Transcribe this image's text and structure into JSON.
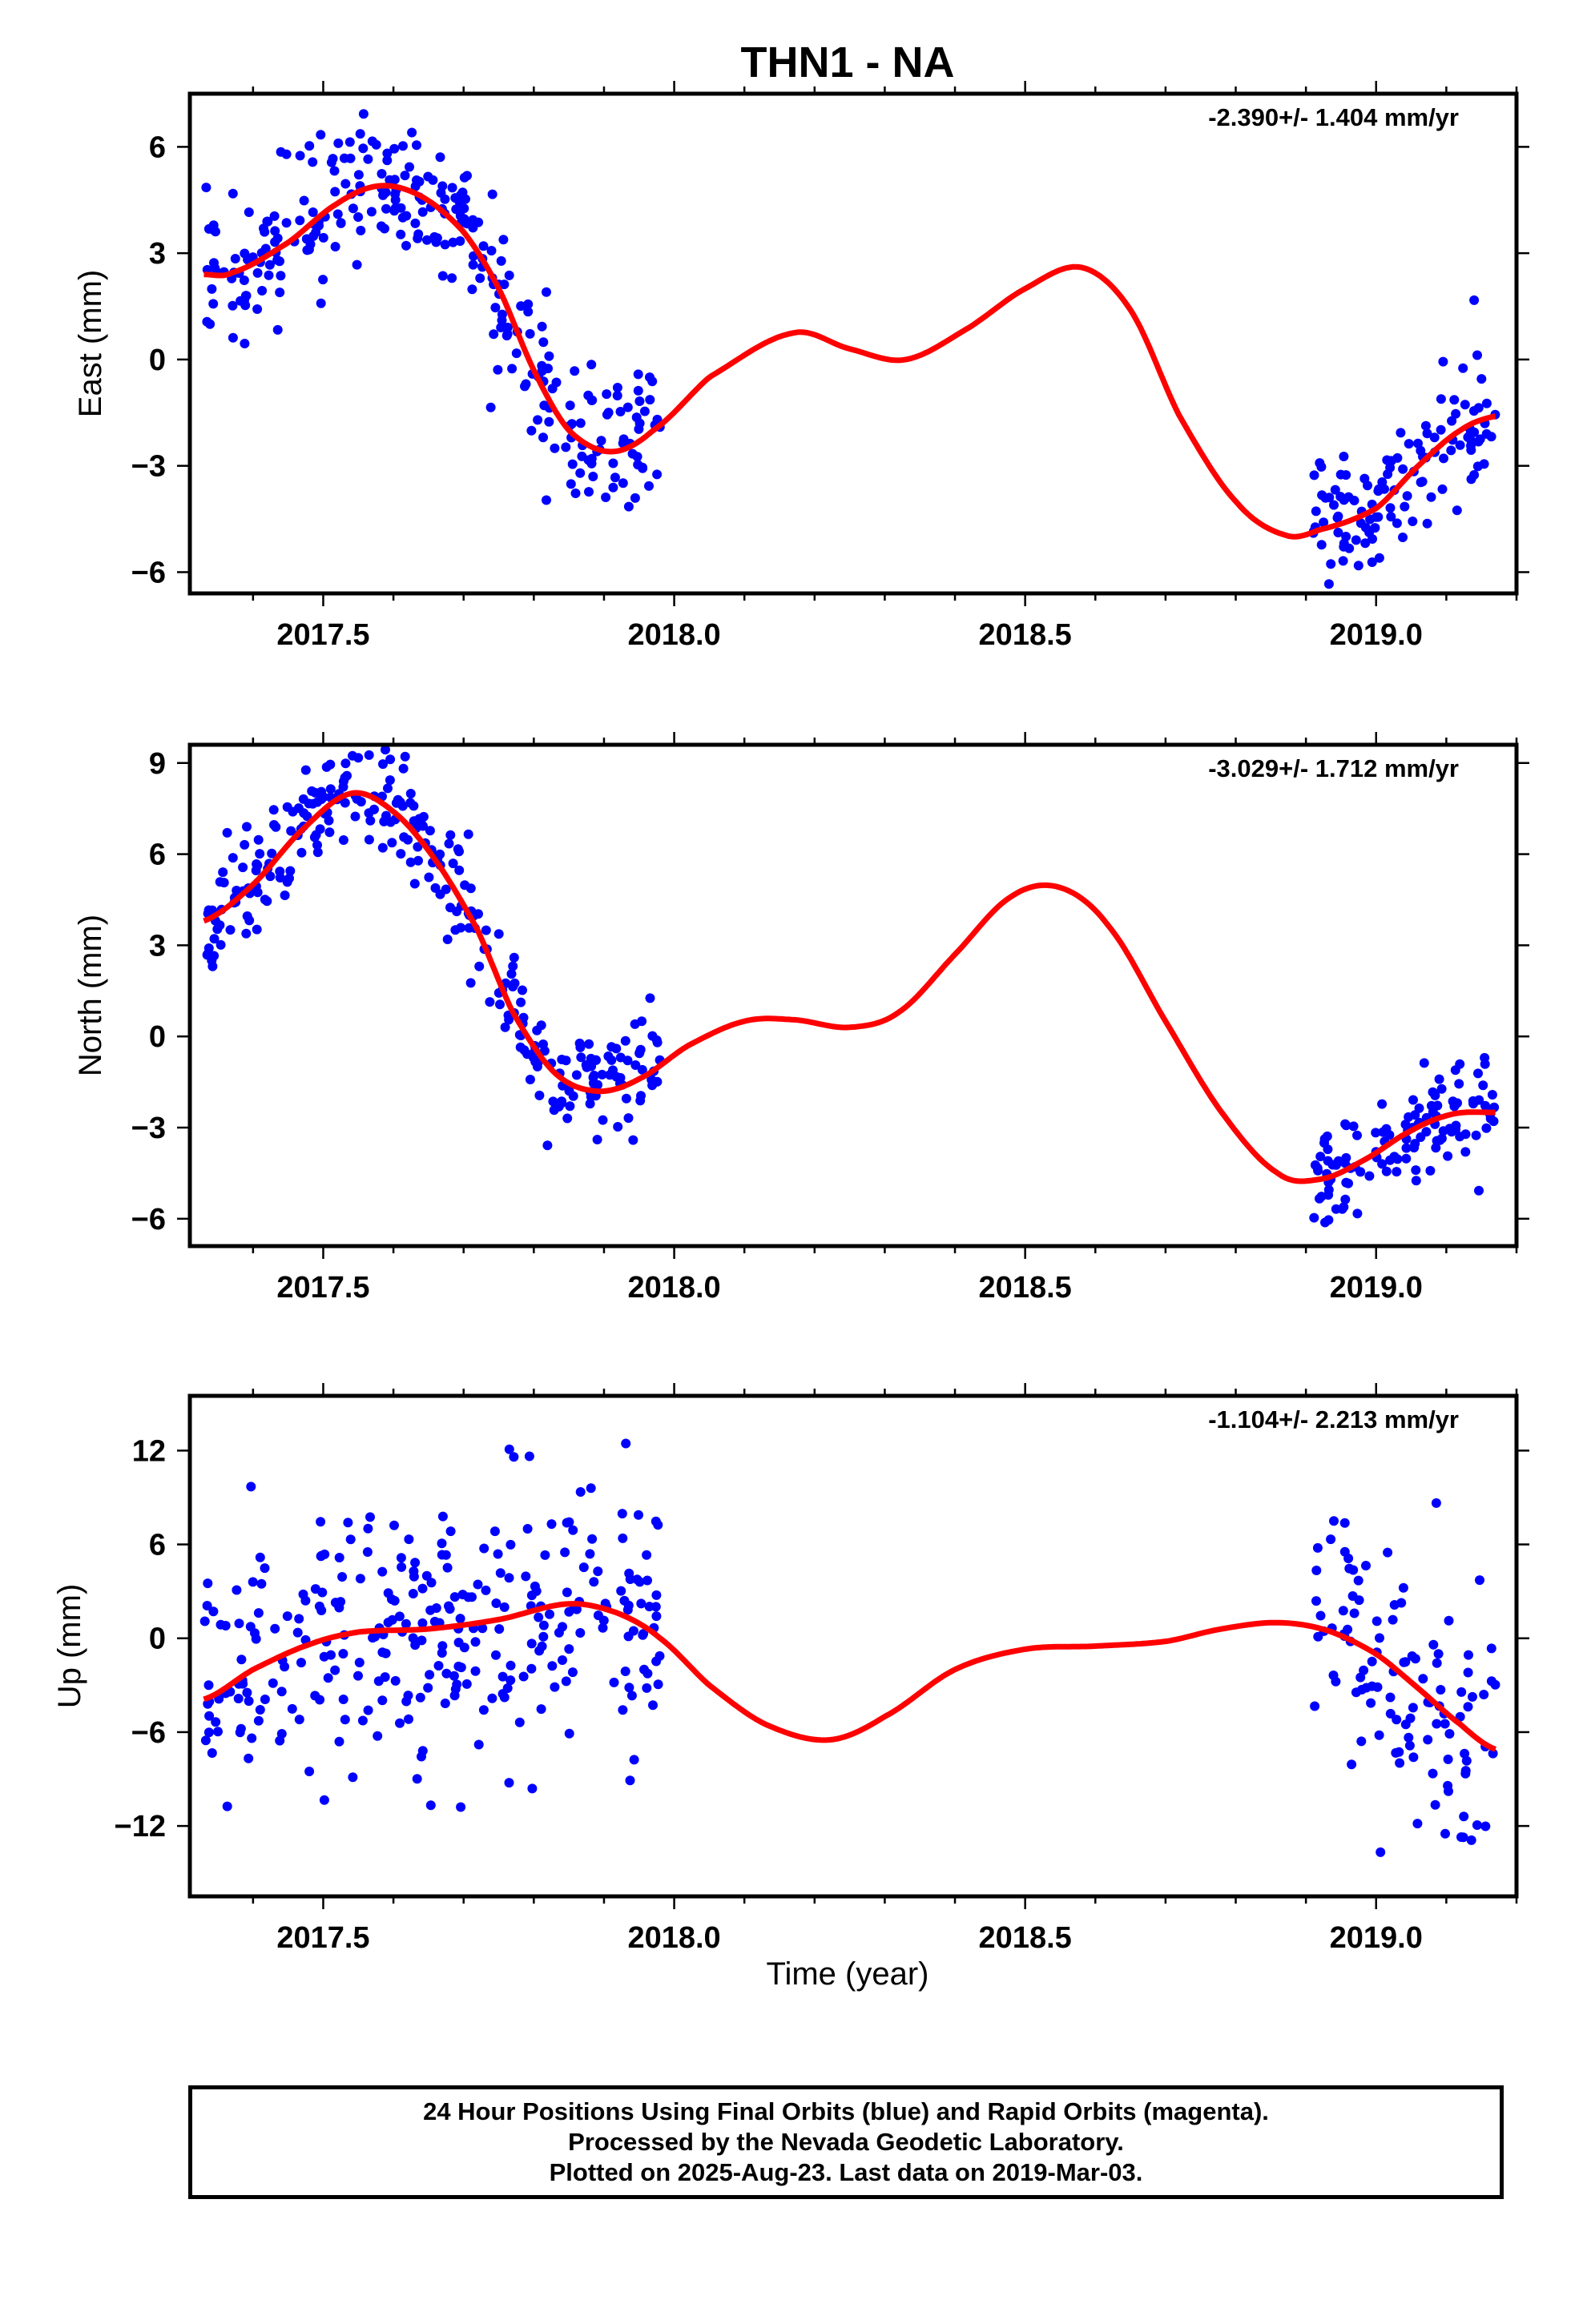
{
  "figure": {
    "title": "THN1 - NA",
    "xlabel": "Time (year)"
  },
  "caption": {
    "lines": [
      "24 Hour Positions Using Final Orbits (blue) and Rapid Orbits (magenta).",
      "Processed by the Nevada Geodetic Laboratory.",
      "Plotted on 2025-Aug-23. Last data on 2019-Mar-03."
    ]
  },
  "colors": {
    "points": "#0000ff",
    "fit": "#ff0000",
    "axes": "#000000"
  },
  "chart_data": [
    {
      "type": "scatter",
      "ylabel": "East (mm)",
      "rate_label": "-2.390+/- 1.404 mm/yr",
      "xlim": [
        2017.31,
        2019.2
      ],
      "ylim": [
        -6.6,
        7.5
      ],
      "xticks": [
        2017.5,
        2018.0,
        2018.5,
        2019.0
      ],
      "xtick_labels": [
        "2017.5",
        "2018.0",
        "2018.5",
        "2019.0"
      ],
      "yticks": [
        -6,
        -3,
        0,
        3,
        6
      ],
      "ytick_labels": [
        "−6",
        "−3",
        "0",
        "3",
        "6"
      ],
      "grid": false,
      "fit_knots": [
        [
          2017.33,
          2.4
        ],
        [
          2017.37,
          2.45
        ],
        [
          2017.45,
          3.3
        ],
        [
          2017.52,
          4.4
        ],
        [
          2017.58,
          4.9
        ],
        [
          2017.64,
          4.6
        ],
        [
          2017.7,
          3.6
        ],
        [
          2017.75,
          2.0
        ],
        [
          2017.8,
          -0.3
        ],
        [
          2017.85,
          -2.0
        ],
        [
          2017.91,
          -2.6
        ],
        [
          2017.97,
          -2.0
        ],
        [
          2018.05,
          -0.5
        ],
        [
          2018.17,
          0.75
        ],
        [
          2018.25,
          0.3
        ],
        [
          2018.33,
          0.0
        ],
        [
          2018.42,
          0.9
        ],
        [
          2018.5,
          2.0
        ],
        [
          2018.58,
          2.6
        ],
        [
          2018.65,
          1.4
        ],
        [
          2018.72,
          -1.6
        ],
        [
          2018.8,
          -4.0
        ],
        [
          2018.87,
          -4.95
        ],
        [
          2018.92,
          -4.8
        ],
        [
          2019.0,
          -4.2
        ],
        [
          2019.06,
          -3.0
        ],
        [
          2019.12,
          -2.0
        ],
        [
          2019.17,
          -1.6
        ]
      ],
      "points_seed": 11,
      "point_noise": 1.0,
      "point_segments": [
        [
          2017.33,
          2017.98,
          300
        ],
        [
          2018.91,
          2019.17,
          120
        ]
      ]
    },
    {
      "type": "scatter",
      "ylabel": "North (mm)",
      "rate_label": "-3.029+/- 1.712 mm/yr",
      "xlim": [
        2017.31,
        2019.2
      ],
      "ylim": [
        -6.9,
        9.6
      ],
      "xticks": [
        2017.5,
        2018.0,
        2018.5,
        2019.0
      ],
      "xtick_labels": [
        "2017.5",
        "2018.0",
        "2018.5",
        "2019.0"
      ],
      "yticks": [
        -6,
        -3,
        0,
        3,
        6,
        9
      ],
      "ytick_labels": [
        "−6",
        "−3",
        "0",
        "3",
        "6",
        "9"
      ],
      "grid": false,
      "fit_knots": [
        [
          2017.33,
          3.8
        ],
        [
          2017.4,
          5.0
        ],
        [
          2017.47,
          6.8
        ],
        [
          2017.54,
          8.0
        ],
        [
          2017.6,
          7.4
        ],
        [
          2017.66,
          5.8
        ],
        [
          2017.72,
          3.5
        ],
        [
          2017.77,
          0.8
        ],
        [
          2017.83,
          -1.2
        ],
        [
          2017.89,
          -1.8
        ],
        [
          2017.95,
          -1.4
        ],
        [
          2018.02,
          -0.3
        ],
        [
          2018.1,
          0.5
        ],
        [
          2018.17,
          0.55
        ],
        [
          2018.25,
          0.3
        ],
        [
          2018.32,
          0.8
        ],
        [
          2018.4,
          2.7
        ],
        [
          2018.48,
          4.6
        ],
        [
          2018.55,
          4.9
        ],
        [
          2018.62,
          3.6
        ],
        [
          2018.7,
          0.5
        ],
        [
          2018.78,
          -2.5
        ],
        [
          2018.86,
          -4.5
        ],
        [
          2018.92,
          -4.7
        ],
        [
          2018.98,
          -4.1
        ],
        [
          2019.05,
          -3.1
        ],
        [
          2019.11,
          -2.55
        ],
        [
          2019.17,
          -2.5
        ]
      ],
      "points_seed": 23,
      "point_noise": 0.9,
      "point_segments": [
        [
          2017.33,
          2017.98,
          300
        ],
        [
          2018.91,
          2019.17,
          120
        ]
      ]
    },
    {
      "type": "scatter",
      "ylabel": "Up (mm)",
      "rate_label": "-1.104+/- 2.213 mm/yr",
      "xlim": [
        2017.31,
        2019.2
      ],
      "ylim": [
        -16.5,
        15.5
      ],
      "xticks": [
        2017.5,
        2018.0,
        2018.5,
        2019.0
      ],
      "xtick_labels": [
        "2017.5",
        "2018.0",
        "2018.5",
        "2019.0"
      ],
      "yticks": [
        -12,
        -6,
        0,
        6,
        12
      ],
      "ytick_labels": [
        "−12",
        "−6",
        "0",
        "6",
        "12"
      ],
      "grid": false,
      "fit_knots": [
        [
          2017.33,
          -3.9
        ],
        [
          2017.4,
          -2.0
        ],
        [
          2017.48,
          -0.4
        ],
        [
          2017.55,
          0.4
        ],
        [
          2017.65,
          0.6
        ],
        [
          2017.75,
          1.2
        ],
        [
          2017.85,
          2.2
        ],
        [
          2017.92,
          1.6
        ],
        [
          2017.98,
          0.0
        ],
        [
          2018.05,
          -3.0
        ],
        [
          2018.13,
          -5.5
        ],
        [
          2018.22,
          -6.5
        ],
        [
          2018.3,
          -5.0
        ],
        [
          2018.4,
          -2.0
        ],
        [
          2018.5,
          -0.7
        ],
        [
          2018.6,
          -0.5
        ],
        [
          2018.7,
          -0.2
        ],
        [
          2018.78,
          0.6
        ],
        [
          2018.86,
          1.0
        ],
        [
          2018.93,
          0.5
        ],
        [
          2019.0,
          -1.0
        ],
        [
          2019.06,
          -3.2
        ],
        [
          2019.12,
          -5.5
        ],
        [
          2019.17,
          -7.1
        ]
      ],
      "points_seed": 37,
      "point_noise": 4.2,
      "point_segments": [
        [
          2017.33,
          2017.98,
          300
        ],
        [
          2018.91,
          2019.17,
          110
        ]
      ]
    }
  ]
}
